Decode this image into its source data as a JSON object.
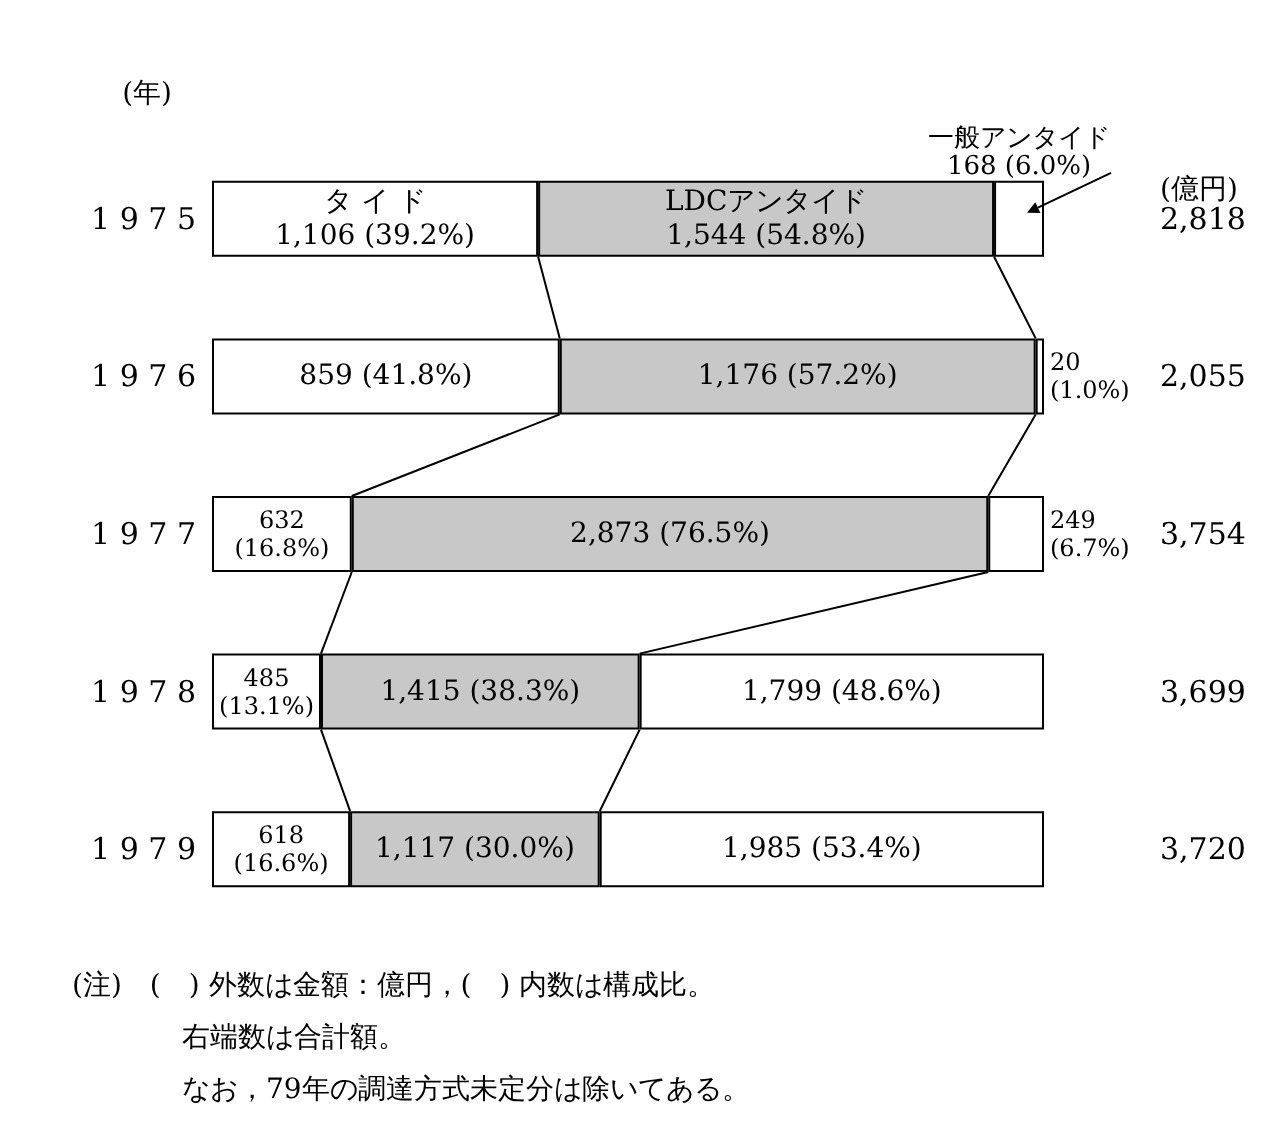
{
  "chart_data": {
    "type": "bar",
    "orientation": "horizontal",
    "stacked": true,
    "legend": false,
    "ylabel": "(年)",
    "y2label": "(億円)",
    "categories": [
      "1 9 7 5",
      "1 9 7 6",
      "1 9 7 7",
      "1 9 7 8",
      "1 9 7 9"
    ],
    "series": [
      {
        "name": "タ イ ド",
        "color": "#ffffff",
        "values": [
          39.2,
          41.8,
          16.8,
          13.1,
          16.6
        ],
        "value_labels": [
          "1,106 (39.2%)",
          "859 (41.8%)",
          "632 (16.8%)",
          "485 (13.1%)",
          "618 (16.6%)"
        ]
      },
      {
        "name": "LDCアンタイド",
        "color": "#c8c8c8",
        "values": [
          54.8,
          57.2,
          76.5,
          38.3,
          30.0
        ],
        "value_labels": [
          "1,544 (54.8%)",
          "1,176 (57.2%)",
          "2,873 (76.5%)",
          "1,415 (38.3%)",
          "1,117 (30.0%)"
        ]
      },
      {
        "name": "一般アンタイド",
        "color": "#ffffff",
        "values": [
          6.0,
          1.0,
          6.7,
          48.6,
          53.4
        ],
        "value_labels": [
          "168 (6.0%)",
          "20 (1.0%)",
          "249 (6.7%)",
          "1,799 (48.6%)",
          "1,985 (53.4%)"
        ]
      }
    ],
    "annotations": [
      "2,818",
      "2,055",
      "3,754",
      "3,699",
      "3,720",
      "(注)　(　) 外数は金額：億円，(　) 内数は構成比。",
      "右端数は合計額。",
      "なお，79年の調達方式未定分は除いてある。"
    ]
  }
}
